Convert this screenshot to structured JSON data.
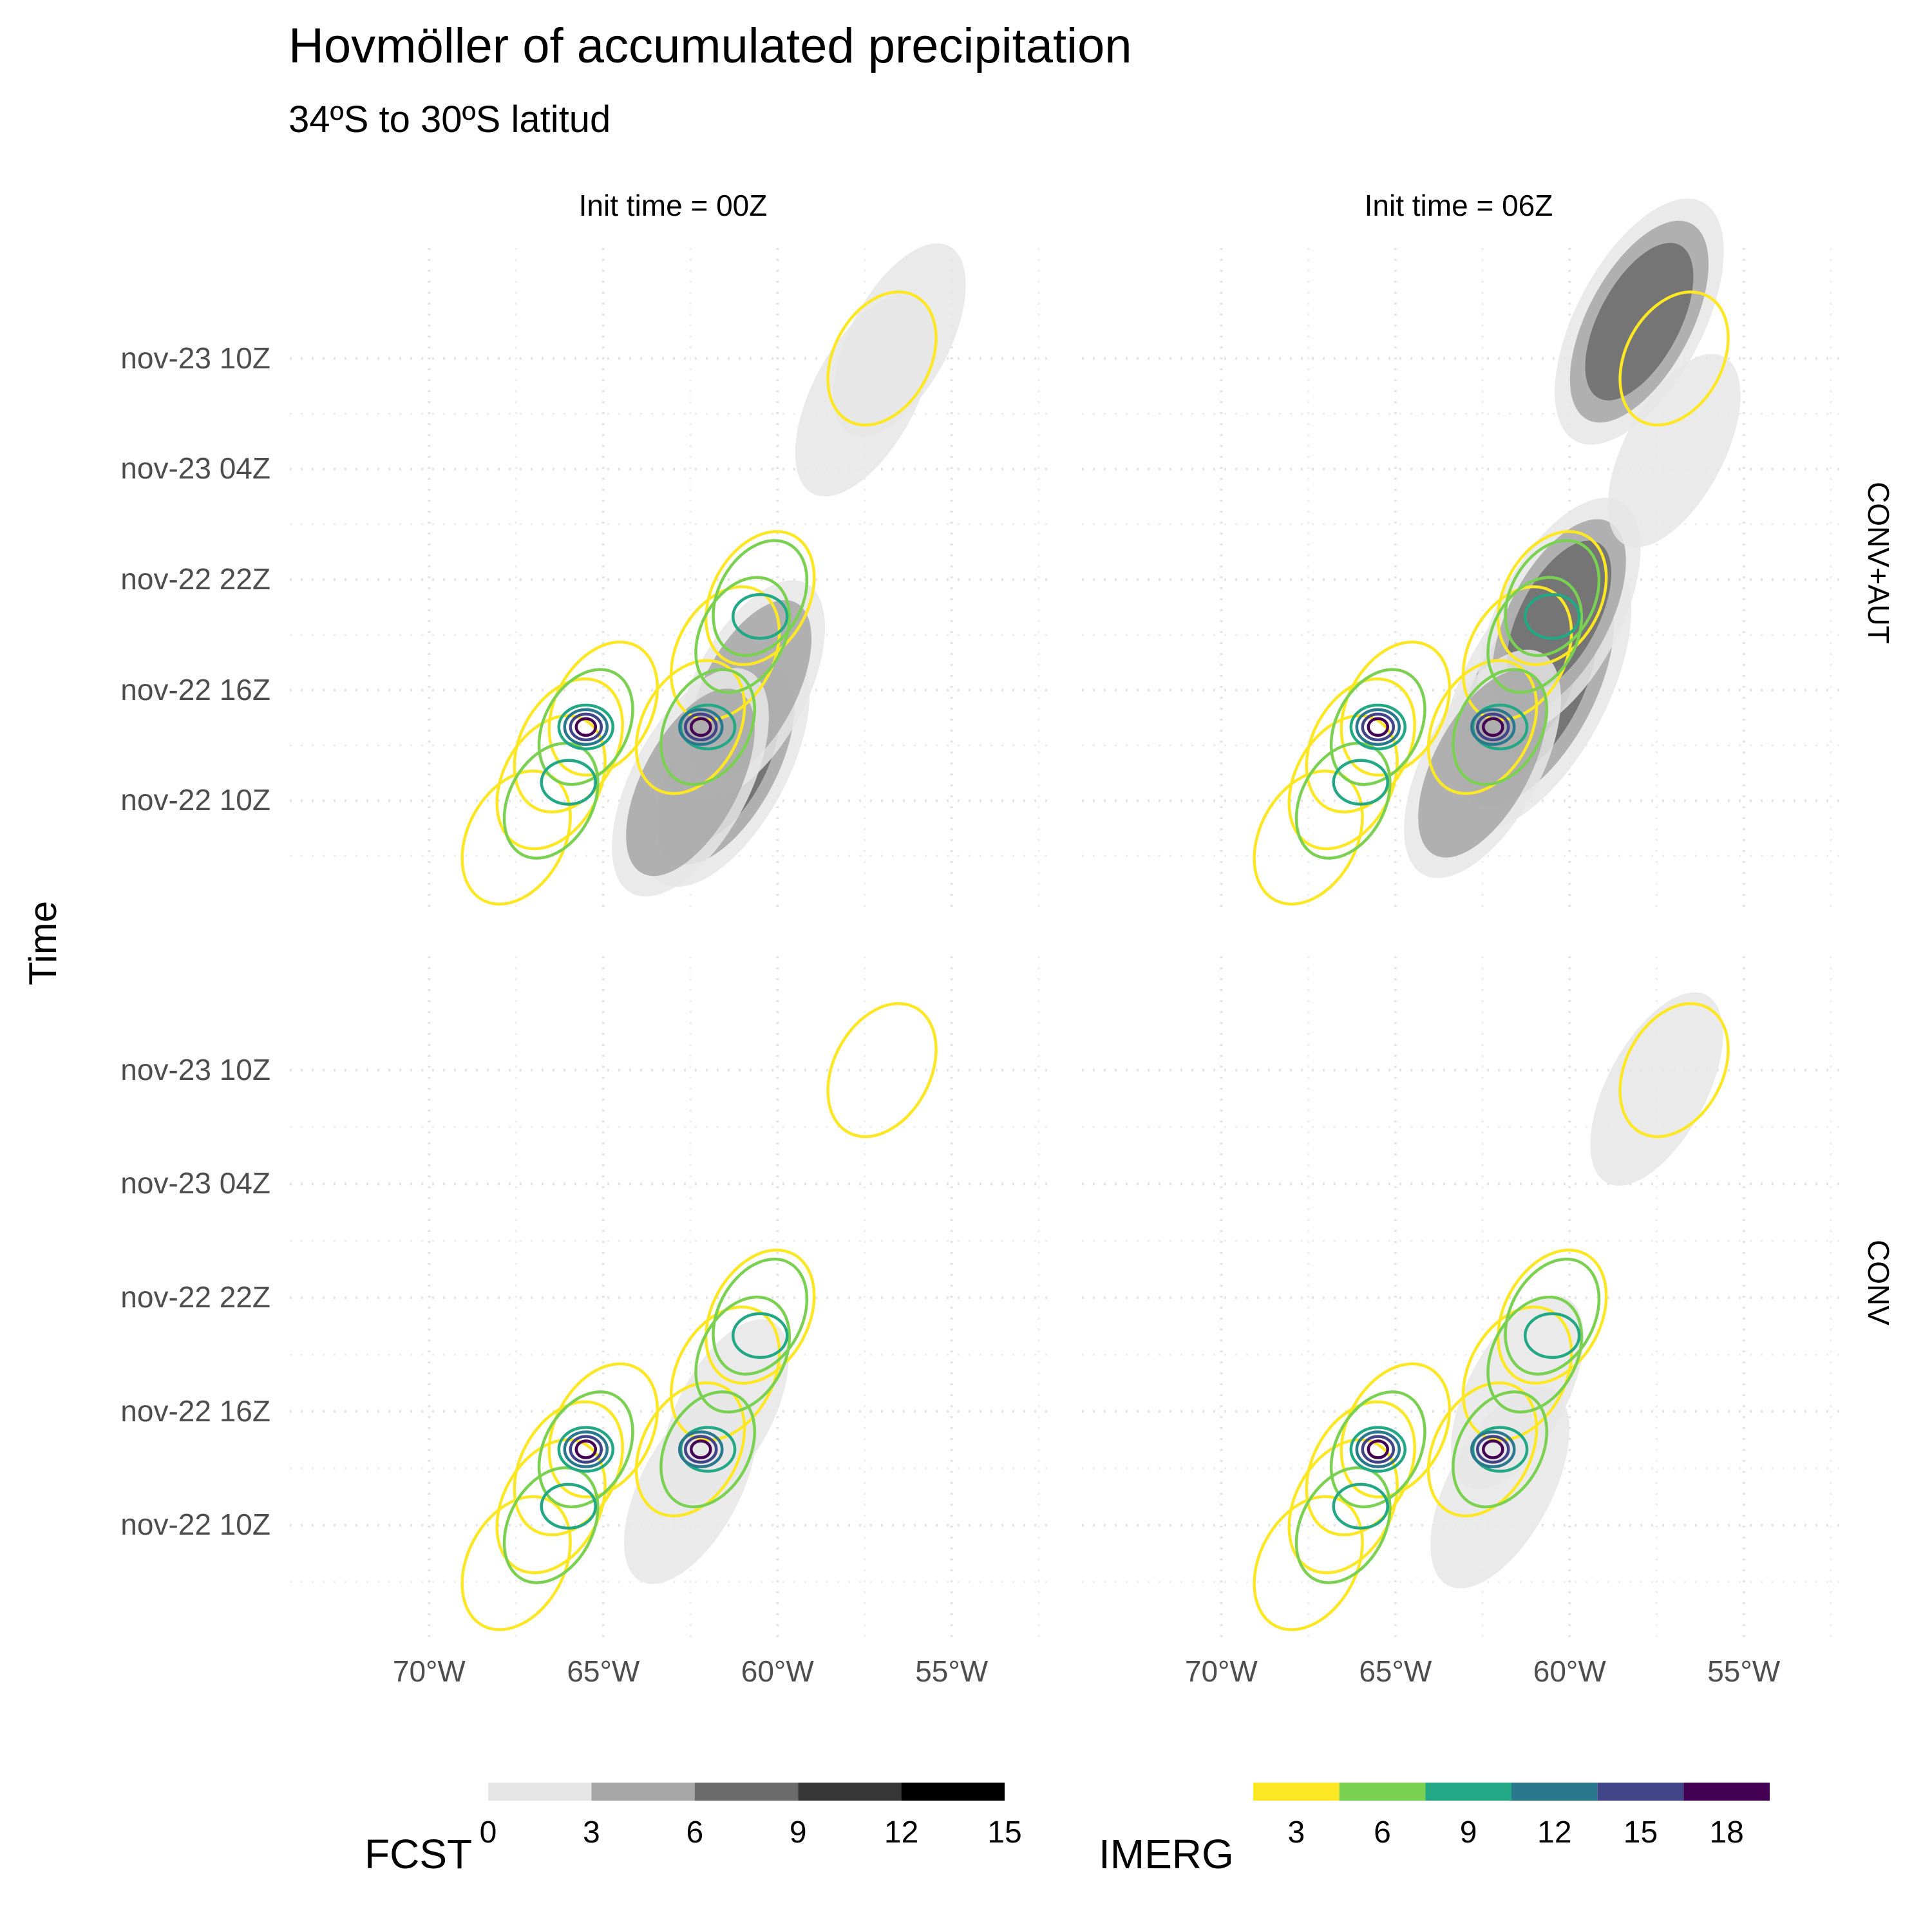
{
  "chart_data": {
    "type": "heatmap",
    "title": "Hovmöller of accumulated precipitation",
    "subtitle": "34ºS to 30ºS latitud",
    "ylabel": "Time",
    "xlabel": "",
    "columns": [
      "Init time = 00Z",
      "Init time = 06Z"
    ],
    "rows": [
      "CONV+AUT",
      "CONV"
    ],
    "x_ticks": [
      -70,
      -65,
      -60,
      -55
    ],
    "x_tick_labels": [
      "70°W",
      "65°W",
      "60°W",
      "55°W"
    ],
    "x_range": [
      -74,
      -52
    ],
    "y_tick_labels": [
      "nov-23 10Z",
      "nov-23 04Z",
      "nov-22 22Z",
      "nov-22 16Z",
      "nov-22 10Z"
    ],
    "y_ticks_hours": [
      34,
      28,
      22,
      16,
      10
    ],
    "y_range_hours": [
      4,
      40
    ],
    "legends": [
      {
        "title": "FCST",
        "breaks": [
          0,
          3,
          6,
          9,
          12,
          15
        ],
        "colors": [
          "#e6e6e6",
          "#a6a6a6",
          "#6b6b6b",
          "#363636",
          "#000000"
        ]
      },
      {
        "title": "IMERG",
        "breaks": [
          3,
          6,
          9,
          12,
          15,
          18
        ],
        "colors": [
          "#fde725",
          "#7ad151",
          "#22a884",
          "#2a788e",
          "#414487",
          "#440154"
        ]
      }
    ],
    "imerg_contours": [
      {
        "level": 3,
        "color": "#fde725",
        "cells": [
          [
            -67.5,
            8
          ],
          [
            -66.5,
            11
          ],
          [
            -66,
            13
          ],
          [
            -65,
            15
          ],
          [
            -62.5,
            14
          ],
          [
            -61.5,
            18
          ],
          [
            -60.5,
            21
          ],
          [
            -57,
            34
          ]
        ]
      },
      {
        "level": 6,
        "color": "#7ad151",
        "cells": [
          [
            -66.5,
            10
          ],
          [
            -65.5,
            14
          ],
          [
            -62,
            14
          ],
          [
            -61,
            19
          ],
          [
            -60.5,
            21
          ]
        ]
      },
      {
        "level": 9,
        "color": "#22a884",
        "cells": [
          [
            -66,
            11
          ],
          [
            -65.5,
            14
          ],
          [
            -62,
            14
          ],
          [
            -60.5,
            20
          ]
        ]
      },
      {
        "level": 12,
        "color": "#2a788e",
        "cells": [
          [
            -65.5,
            14
          ],
          [
            -62.2,
            14
          ]
        ]
      },
      {
        "level": 15,
        "color": "#414487",
        "cells": [
          [
            -65.5,
            14
          ],
          [
            -62.2,
            14
          ]
        ]
      },
      {
        "level": 18,
        "color": "#440154",
        "cells": [
          [
            -65.5,
            14
          ],
          [
            -62.2,
            14
          ]
        ]
      }
    ],
    "fcst_blobs": [
      {
        "panel": "00Z CONV+AUT",
        "cells": [
          [
            -61.5,
            12,
            8
          ],
          [
            -60.8,
            16,
            5
          ],
          [
            -62.5,
            11,
            6
          ],
          [
            -57.5,
            32,
            3
          ],
          [
            -56.5,
            35,
            2
          ]
        ]
      },
      {
        "panel": "06Z CONV+AUT",
        "cells": [
          [
            -61,
            16,
            12
          ],
          [
            -60.3,
            20,
            7
          ],
          [
            -62.5,
            12,
            6
          ],
          [
            -58,
            36,
            8
          ],
          [
            -57,
            29,
            2
          ]
        ]
      },
      {
        "panel": "00Z CONV",
        "cells": [
          [
            -62.5,
            12,
            2
          ],
          [
            -61.5,
            16,
            1
          ]
        ]
      },
      {
        "panel": "06Z CONV",
        "cells": [
          [
            -62,
            12,
            3
          ],
          [
            -61.5,
            17,
            2
          ],
          [
            -57.5,
            33,
            2
          ]
        ]
      }
    ]
  }
}
